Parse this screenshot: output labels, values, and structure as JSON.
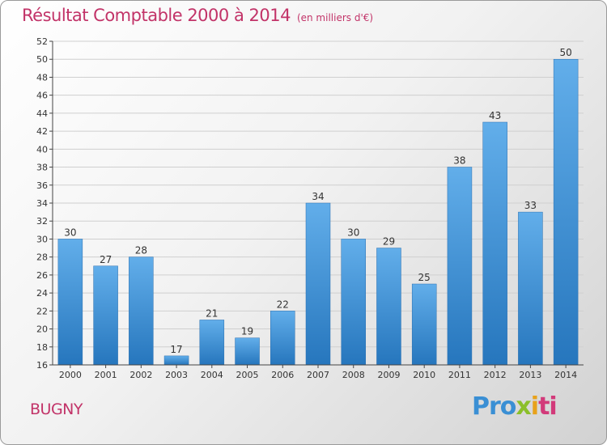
{
  "header": {
    "title": "Résultat Comptable 2000 à 2014",
    "subtitle": "(en milliers d'€)"
  },
  "footer": {
    "town": "BUGNY",
    "logo_parts": [
      "Pro",
      "x",
      "i",
      "ti"
    ]
  },
  "colors": {
    "accent": "#c23368",
    "bar": "#3b8fd6"
  },
  "chart_data": {
    "type": "bar",
    "categories": [
      "2000",
      "2001",
      "2002",
      "2003",
      "2004",
      "2005",
      "2006",
      "2007",
      "2008",
      "2009",
      "2010",
      "2011",
      "2012",
      "2013",
      "2014"
    ],
    "values": [
      30,
      27,
      28,
      17,
      21,
      19,
      22,
      34,
      30,
      29,
      25,
      38,
      43,
      33,
      50
    ],
    "title": "Résultat Comptable 2000 à 2014",
    "subtitle": "(en milliers d'€)",
    "ylim": [
      16,
      52
    ],
    "yticks": [
      16,
      18,
      20,
      22,
      24,
      26,
      28,
      30,
      32,
      34,
      36,
      38,
      40,
      42,
      44,
      46,
      48,
      50,
      52
    ],
    "grid": true,
    "legend": "none"
  }
}
